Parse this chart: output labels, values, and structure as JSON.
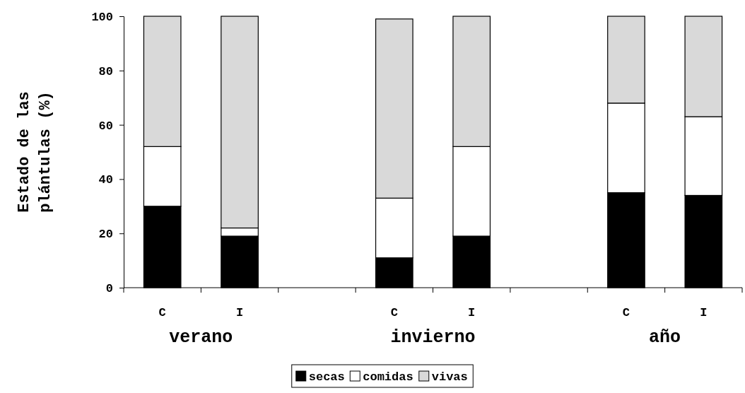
{
  "chart_data": {
    "type": "bar",
    "stacked": true,
    "ylabel": "Estado de las plántulas (%)",
    "categories": [
      "C",
      "I",
      null,
      "C",
      "I",
      null,
      "C",
      "I"
    ],
    "series": [
      {
        "name": "secas",
        "color": "#000000",
        "values": [
          30,
          19,
          null,
          11,
          19,
          null,
          35,
          34
        ]
      },
      {
        "name": "comidas",
        "color": "#ffffff",
        "values": [
          22,
          3,
          null,
          22,
          33,
          null,
          33,
          29
        ]
      },
      {
        "name": "vivas",
        "color": "#d9d9d9",
        "values": [
          48,
          78,
          null,
          66,
          48,
          null,
          32,
          37
        ]
      }
    ],
    "annotations": [
      "verano",
      "invierno",
      "año"
    ],
    "ylim": [
      0,
      100
    ],
    "yticks": [
      0,
      20,
      40,
      60,
      80,
      100
    ],
    "grid": false,
    "legend": "bottom"
  }
}
